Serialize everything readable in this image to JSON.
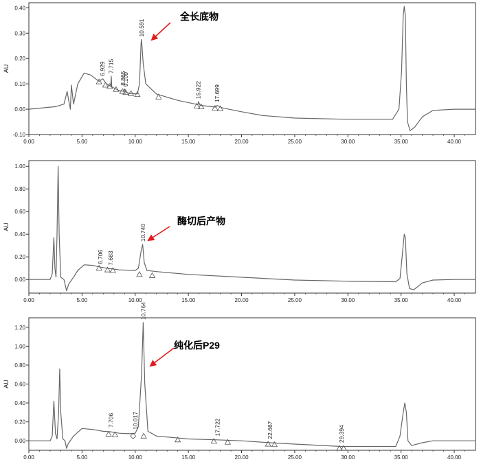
{
  "colors": {
    "trace": "#666666",
    "axis": "#333333",
    "arrow": "#e21b1b",
    "marker": "#555555"
  },
  "chart_data": [
    {
      "type": "line",
      "title": "",
      "xlabel": "",
      "ylabel": "AU",
      "xlim": [
        0,
        42
      ],
      "ylim": [
        -0.1,
        0.42
      ],
      "x_ticks": [
        {
          "v": 0,
          "label": "0.00"
        },
        {
          "v": 5,
          "label": "5.00"
        },
        {
          "v": 10,
          "label": "10.00"
        },
        {
          "v": 15,
          "label": "15.00"
        },
        {
          "v": 20,
          "label": "20.00"
        },
        {
          "v": 25,
          "label": "25.00"
        },
        {
          "v": 30,
          "label": "30.00"
        },
        {
          "v": 35,
          "label": "35.00"
        },
        {
          "v": 40,
          "label": "40.00"
        }
      ],
      "y_ticks": [
        {
          "v": -0.1,
          "label": "-0.10"
        },
        {
          "v": 0,
          "label": "0.00"
        },
        {
          "v": 0.1,
          "label": "0.10"
        },
        {
          "v": 0.2,
          "label": "0.20"
        },
        {
          "v": 0.3,
          "label": "0.30"
        },
        {
          "v": 0.4,
          "label": "0.40"
        }
      ],
      "trace": [
        [
          0,
          0.0
        ],
        [
          2.5,
          0.01
        ],
        [
          3.3,
          0.02
        ],
        [
          3.6,
          0.07
        ],
        [
          3.7,
          0.045
        ],
        [
          3.9,
          0.0
        ],
        [
          4.0,
          0.095
        ],
        [
          4.2,
          0.02
        ],
        [
          4.6,
          0.1
        ],
        [
          5.2,
          0.142
        ],
        [
          5.8,
          0.135
        ],
        [
          6.6,
          0.11
        ],
        [
          6.95,
          0.12
        ],
        [
          7.3,
          0.1
        ],
        [
          7.7,
          0.09
        ],
        [
          7.75,
          0.13
        ],
        [
          7.8,
          0.088
        ],
        [
          8.4,
          0.075
        ],
        [
          8.9,
          0.07
        ],
        [
          9.0,
          0.08
        ],
        [
          9.1,
          0.068
        ],
        [
          9.5,
          0.062
        ],
        [
          10.2,
          0.06
        ],
        [
          10.4,
          0.1
        ],
        [
          10.55,
          0.26
        ],
        [
          10.6,
          0.275
        ],
        [
          10.75,
          0.18
        ],
        [
          11.0,
          0.1
        ],
        [
          12.0,
          0.06
        ],
        [
          14.0,
          0.035
        ],
        [
          15.9,
          0.018
        ],
        [
          15.95,
          0.03
        ],
        [
          16.1,
          0.015
        ],
        [
          17.6,
          0.008
        ],
        [
          17.7,
          0.015
        ],
        [
          18.2,
          0.005
        ],
        [
          20.0,
          -0.01
        ],
        [
          22.0,
          -0.025
        ],
        [
          25.0,
          -0.035
        ],
        [
          30.0,
          -0.04
        ],
        [
          34.2,
          -0.04
        ],
        [
          34.8,
          0.0
        ],
        [
          35.05,
          0.15
        ],
        [
          35.2,
          0.37
        ],
        [
          35.3,
          0.405
        ],
        [
          35.4,
          0.37
        ],
        [
          35.5,
          0.1
        ],
        [
          35.6,
          -0.05
        ],
        [
          35.85,
          -0.085
        ],
        [
          36.3,
          -0.07
        ],
        [
          37.0,
          -0.03
        ],
        [
          38.0,
          -0.005
        ],
        [
          40.0,
          0.0
        ],
        [
          42.0,
          0.0
        ]
      ],
      "peaks": [
        {
          "rt": "6.929",
          "x": 6.929,
          "y": 0.12
        },
        {
          "rt": "7.715",
          "x": 7.715,
          "y": 0.13
        },
        {
          "rt": "8.865",
          "x": 8.865,
          "y": 0.082
        },
        {
          "rt": "9.109",
          "x": 9.109,
          "y": 0.078
        },
        {
          "rt": "10.591",
          "x": 10.591,
          "y": 0.275
        },
        {
          "rt": "15.922",
          "x": 15.922,
          "y": 0.03
        },
        {
          "rt": "17.699",
          "x": 17.699,
          "y": 0.016
        }
      ],
      "triangles": [
        [
          6.6,
          0.108
        ],
        [
          7.2,
          0.095
        ],
        [
          7.6,
          0.09
        ],
        [
          8.2,
          0.078
        ],
        [
          8.8,
          0.07
        ],
        [
          9.1,
          0.066
        ],
        [
          9.6,
          0.062
        ],
        [
          10.2,
          0.058
        ],
        [
          12.2,
          0.048
        ],
        [
          15.8,
          0.012
        ],
        [
          16.2,
          0.01
        ],
        [
          17.5,
          0.004
        ],
        [
          18.0,
          0.002
        ]
      ],
      "diamonds": [],
      "annotation": {
        "text": "全长底物",
        "peak_x": 10.591,
        "peak_y": 0.275
      }
    },
    {
      "type": "line",
      "title": "",
      "xlabel": "",
      "ylabel": "AU",
      "xlim": [
        0,
        42
      ],
      "ylim": [
        -0.12,
        1.05
      ],
      "x_ticks": [
        {
          "v": 0,
          "label": "0.00"
        },
        {
          "v": 5,
          "label": "5.00"
        },
        {
          "v": 10,
          "label": "10.00"
        },
        {
          "v": 15,
          "label": "15.00"
        },
        {
          "v": 20,
          "label": "20.00"
        },
        {
          "v": 25,
          "label": "25.00"
        },
        {
          "v": 30,
          "label": "30.00"
        },
        {
          "v": 35,
          "label": "35.00"
        },
        {
          "v": 40,
          "label": "40.00"
        }
      ],
      "y_ticks": [
        {
          "v": 0,
          "label": "0.00"
        },
        {
          "v": 0.2,
          "label": "0.20"
        },
        {
          "v": 0.4,
          "label": "0.40"
        },
        {
          "v": 0.6,
          "label": "0.60"
        },
        {
          "v": 0.8,
          "label": "0.80"
        },
        {
          "v": 1.0,
          "label": "1.00"
        }
      ],
      "trace": [
        [
          0,
          0.0
        ],
        [
          2.0,
          0.0
        ],
        [
          2.2,
          0.05
        ],
        [
          2.35,
          0.37
        ],
        [
          2.45,
          0.1
        ],
        [
          2.55,
          0.02
        ],
        [
          2.65,
          0.4
        ],
        [
          2.75,
          1.0
        ],
        [
          2.85,
          0.4
        ],
        [
          3.0,
          0.02
        ],
        [
          3.3,
          0.0
        ],
        [
          3.55,
          -0.1
        ],
        [
          3.75,
          -0.04
        ],
        [
          4.2,
          0.02
        ],
        [
          4.6,
          0.08
        ],
        [
          5.2,
          0.13
        ],
        [
          6.0,
          0.125
        ],
        [
          6.7,
          0.11
        ],
        [
          7.3,
          0.1
        ],
        [
          7.68,
          0.095
        ],
        [
          7.8,
          0.095
        ],
        [
          8.5,
          0.085
        ],
        [
          10.0,
          0.08
        ],
        [
          10.3,
          0.1
        ],
        [
          10.55,
          0.25
        ],
        [
          10.7,
          0.31
        ],
        [
          10.85,
          0.15
        ],
        [
          11.1,
          0.08
        ],
        [
          12.0,
          0.07
        ],
        [
          15.0,
          0.045
        ],
        [
          20.0,
          0.02
        ],
        [
          25.0,
          -0.005
        ],
        [
          30.0,
          -0.015
        ],
        [
          34.5,
          -0.02
        ],
        [
          34.9,
          0.01
        ],
        [
          35.1,
          0.2
        ],
        [
          35.3,
          0.4
        ],
        [
          35.4,
          0.37
        ],
        [
          35.55,
          0.05
        ],
        [
          35.8,
          -0.08
        ],
        [
          36.2,
          -0.09
        ],
        [
          37.0,
          -0.03
        ],
        [
          38.0,
          -0.005
        ],
        [
          40.0,
          0.0
        ],
        [
          42.0,
          0.0
        ]
      ],
      "peaks": [
        {
          "rt": "6.706",
          "x": 6.706,
          "y": 0.11
        },
        {
          "rt": "7.683",
          "x": 7.683,
          "y": 0.1
        },
        {
          "rt": "10.740",
          "x": 10.74,
          "y": 0.31
        }
      ],
      "triangles": [
        [
          6.6,
          0.1
        ],
        [
          7.4,
          0.085
        ],
        [
          7.9,
          0.08
        ],
        [
          10.4,
          0.045
        ],
        [
          11.6,
          0.035
        ]
      ],
      "diamonds": [],
      "annotation": {
        "text": "酶切后产物",
        "peak_x": 10.74,
        "peak_y": 0.31
      }
    },
    {
      "type": "line",
      "title": "",
      "xlabel": "",
      "ylabel": "AU",
      "xlim": [
        0,
        42
      ],
      "ylim": [
        -0.1,
        1.3
      ],
      "x_ticks": [
        {
          "v": 0,
          "label": "0.00"
        },
        {
          "v": 5,
          "label": "5.00"
        },
        {
          "v": 10,
          "label": "10.00"
        },
        {
          "v": 15,
          "label": "15.00"
        },
        {
          "v": 20,
          "label": "20.00"
        },
        {
          "v": 25,
          "label": "25.00"
        },
        {
          "v": 30,
          "label": "30.00"
        },
        {
          "v": 35,
          "label": "35.00"
        },
        {
          "v": 40,
          "label": "40.00"
        }
      ],
      "y_ticks": [
        {
          "v": 0,
          "label": "0.00"
        },
        {
          "v": 0.2,
          "label": "0.20"
        },
        {
          "v": 0.4,
          "label": "0.40"
        },
        {
          "v": 0.6,
          "label": "0.60"
        },
        {
          "v": 0.8,
          "label": "0.80"
        },
        {
          "v": 1.0,
          "label": "1.00"
        },
        {
          "v": 1.2,
          "label": "1.20"
        }
      ],
      "trace": [
        [
          0,
          0.0
        ],
        [
          2.0,
          0.0
        ],
        [
          2.2,
          0.05
        ],
        [
          2.35,
          0.42
        ],
        [
          2.5,
          0.08
        ],
        [
          2.65,
          0.02
        ],
        [
          2.8,
          0.3
        ],
        [
          2.9,
          0.76
        ],
        [
          3.0,
          0.3
        ],
        [
          3.2,
          0.02
        ],
        [
          3.4,
          0.0
        ],
        [
          3.55,
          -0.08
        ],
        [
          3.7,
          -0.03
        ],
        [
          4.2,
          0.05
        ],
        [
          5.0,
          0.13
        ],
        [
          6.0,
          0.12
        ],
        [
          7.0,
          0.1
        ],
        [
          7.7,
          0.095
        ],
        [
          8.5,
          0.08
        ],
        [
          9.5,
          0.075
        ],
        [
          10.0,
          0.08
        ],
        [
          10.3,
          0.15
        ],
        [
          10.6,
          0.7
        ],
        [
          10.75,
          1.25
        ],
        [
          10.9,
          0.6
        ],
        [
          11.2,
          0.1
        ],
        [
          12.0,
          0.05
        ],
        [
          15.0,
          0.02
        ],
        [
          17.7,
          0.01
        ],
        [
          20.0,
          0.0
        ],
        [
          22.7,
          -0.02
        ],
        [
          25.0,
          -0.035
        ],
        [
          29.4,
          -0.06
        ],
        [
          30.0,
          -0.06
        ],
        [
          34.5,
          -0.06
        ],
        [
          34.9,
          0.05
        ],
        [
          35.2,
          0.3
        ],
        [
          35.35,
          0.4
        ],
        [
          35.5,
          0.3
        ],
        [
          35.65,
          0.0
        ],
        [
          36.0,
          -0.05
        ],
        [
          37.0,
          -0.02
        ],
        [
          38.0,
          0.0
        ],
        [
          40.0,
          0.0
        ],
        [
          42.0,
          0.0
        ]
      ],
      "peaks": [
        {
          "rt": "7.706",
          "x": 7.706,
          "y": 0.11
        },
        {
          "rt": "10.017",
          "x": 10.017,
          "y": 0.09
        },
        {
          "rt": "10.764",
          "x": 10.764,
          "y": 1.25
        },
        {
          "rt": "17.722",
          "x": 17.722,
          "y": 0.02
        },
        {
          "rt": "22.667",
          "x": 22.667,
          "y": -0.01
        },
        {
          "rt": "29.394",
          "x": 29.394,
          "y": -0.05
        }
      ],
      "triangles": [
        [
          7.5,
          0.07
        ],
        [
          8.1,
          0.065
        ],
        [
          10.8,
          0.05
        ],
        [
          14.0,
          0.01
        ],
        [
          17.4,
          -0.005
        ],
        [
          18.7,
          -0.015
        ],
        [
          22.5,
          -0.035
        ],
        [
          23.1,
          -0.04
        ],
        [
          29.2,
          -0.08
        ],
        [
          29.6,
          -0.08
        ]
      ],
      "diamonds": [
        [
          9.8,
          0.05
        ]
      ],
      "annotation": {
        "text": "纯化后P29",
        "peak_x": 10.764,
        "peak_y": 1.25
      }
    }
  ]
}
